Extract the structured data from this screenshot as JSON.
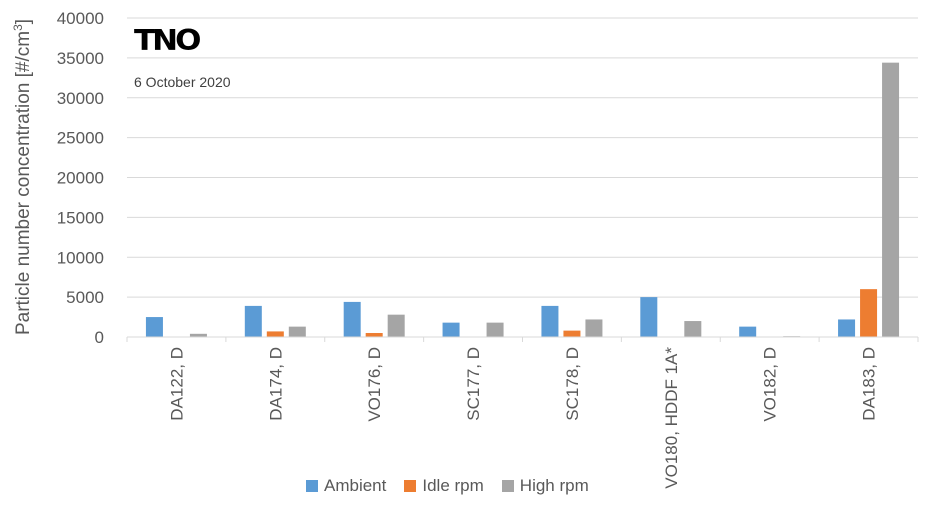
{
  "logo_text": "TNO",
  "date_text": "6 October 2020",
  "chart_data": {
    "type": "bar",
    "title": "",
    "ylabel": "Particle number concentration [#/cm",
    "ylabel_sup": "3",
    "ylabel_end": "]",
    "xlabel": "",
    "ylim": [
      0,
      40000
    ],
    "yticks": [
      "0",
      "5000",
      "10000",
      "15000",
      "20000",
      "25000",
      "30000",
      "35000",
      "40000"
    ],
    "categories": [
      "DA122, D",
      "DA174, D",
      "VO176, D",
      "SC177, D",
      "SC178, D",
      "VO180, HDDF 1A*",
      "VO182, D",
      "DA183, D"
    ],
    "series": [
      {
        "name": "Ambient",
        "color": "#5b9bd5",
        "values": [
          2500,
          3900,
          4400,
          1800,
          3900,
          5000,
          1300,
          2200
        ]
      },
      {
        "name": "Idle rpm",
        "color": "#ed7d31",
        "values": [
          0,
          700,
          500,
          0,
          800,
          0,
          0,
          6000
        ]
      },
      {
        "name": "High rpm",
        "color": "#a5a5a5",
        "values": [
          400,
          1300,
          2800,
          1800,
          2200,
          2000,
          100,
          34400
        ]
      }
    ],
    "grid": true,
    "legend_position": "bottom"
  }
}
